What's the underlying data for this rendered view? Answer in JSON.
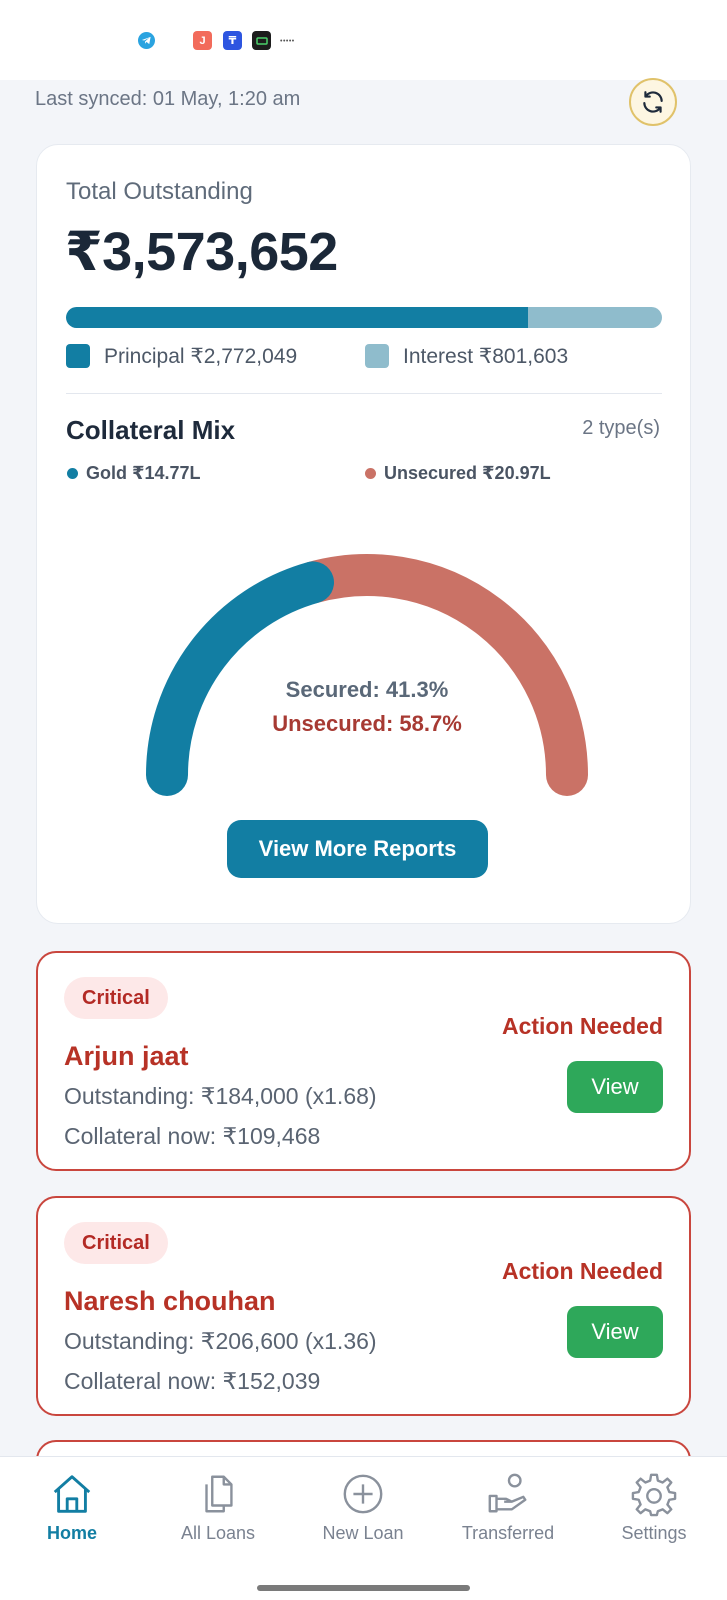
{
  "status_bar": {
    "icons": [
      "telegram-icon",
      "j-app-icon",
      "t-app-icon",
      "money-app-icon"
    ],
    "dots": "•••••"
  },
  "sync": {
    "text": "Last synced: 01 May, 1:20 am",
    "refresh_icon": "refresh-icon",
    "accent_color": "#e0c26a"
  },
  "summary": {
    "label": "Total Outstanding",
    "value": "₹3,573,652",
    "principal_fraction": 0.776,
    "principal_label": "Principal ₹2,772,049",
    "interest_label": "Interest ₹801,603",
    "principal_color": "#127ea3",
    "interest_color": "#8fbccc"
  },
  "collateral_mix": {
    "title": "Collateral Mix",
    "count": "2 type(s)",
    "gold_label": "Gold ₹14.77L",
    "unsecured_label": "Unsecured ₹20.97L",
    "gold_color": "#127ea3",
    "unsecured_color": "#ca7266",
    "secured_fraction": 0.413,
    "secured_text": "Secured: 41.3%",
    "unsecured_text": "Unsecured: 58.7%"
  },
  "reports_button": "View More Reports",
  "alerts": [
    {
      "badge": "Critical",
      "name": "Arjun jaat",
      "outstanding": "Outstanding: ₹184,000 (x1.68)",
      "collateral": "Collateral now: ₹109,468",
      "action": "Action Needed",
      "button": "View"
    },
    {
      "badge": "Critical",
      "name": "Naresh chouhan",
      "outstanding": "Outstanding: ₹206,600 (x1.36)",
      "collateral": "Collateral now: ₹152,039",
      "action": "Action Needed",
      "button": "View"
    }
  ],
  "nav": {
    "home": "Home",
    "all_loans": "All Loans",
    "new_loan": "New Loan",
    "transferred": "Transferred",
    "settings": "Settings",
    "active_color": "#127ea3"
  }
}
